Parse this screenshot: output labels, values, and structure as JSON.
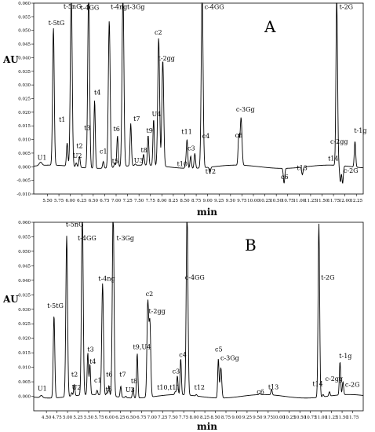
{
  "chart_data": [
    {
      "type": "line",
      "panel_label": "A",
      "xlabel": "min",
      "ylabel": "AU",
      "xlim": [
        5.2,
        12.4
      ],
      "ylim": [
        -0.01,
        0.06
      ],
      "x_ticks": [
        "5.50",
        "5.75",
        "6.00",
        "6.25",
        "6.50",
        "6.75",
        "7.00",
        "7.25",
        "7.50",
        "7.75",
        "8.00",
        "8.25",
        "8.50",
        "8.75",
        "9.00",
        "9.25",
        "9.50",
        "9.75",
        "10.00",
        "10.25",
        "10.50",
        "10.75",
        "11.00",
        "11.25",
        "11.50",
        "11.75",
        "12.00",
        "12.25"
      ],
      "y_ticks": [
        "-0.010",
        "-0.005",
        "0.000",
        "0.005",
        "0.010",
        "0.015",
        "0.020",
        "0.025",
        "0.030",
        "0.035",
        "0.040",
        "0.045",
        "0.050",
        "0.055",
        "0.060"
      ],
      "baseline": 0.0,
      "peaks": [
        {
          "label": "U1",
          "x": 5.35,
          "y": 0.0012,
          "w": 0.03
        },
        {
          "label": "t-5tG",
          "x": 5.63,
          "y": 0.0505,
          "w": 0.018
        },
        {
          "label": "t1",
          "x": 5.93,
          "y": 0.0085,
          "w": 0.015
        },
        {
          "label": "t-5nG",
          "x": 6.02,
          "y": 0.065,
          "w": 0.02
        },
        {
          "label": "U2",
          "x": 6.13,
          "y": 0.0015,
          "w": 0.015
        },
        {
          "label": "t2",
          "x": 6.2,
          "y": 0.004,
          "w": 0.015
        },
        {
          "label": "t-4GG",
          "x": 6.4,
          "y": 0.065,
          "w": 0.02
        },
        {
          "label": "t4",
          "x": 6.53,
          "y": 0.025,
          "w": 0.015
        },
        {
          "label": "c1",
          "x": 6.72,
          "y": 0.0025,
          "w": 0.015
        },
        {
          "label": "t-4ng",
          "x": 6.85,
          "y": 0.054,
          "w": 0.02
        },
        {
          "label": "t5",
          "x": 6.97,
          "y": 0.0015,
          "w": 0.015
        },
        {
          "label": "t6",
          "x": 7.03,
          "y": 0.0115,
          "w": 0.015
        },
        {
          "label": "t-3Gg",
          "x": 7.15,
          "y": 0.065,
          "w": 0.02
        },
        {
          "label": "t7",
          "x": 7.32,
          "y": 0.0155,
          "w": 0.015
        },
        {
          "label": "U3",
          "x": 7.42,
          "y": 0.0005,
          "w": 0.015
        },
        {
          "label": "t8",
          "x": 7.6,
          "y": 0.004,
          "w": 0.015
        },
        {
          "label": "t9",
          "x": 7.7,
          "y": 0.011,
          "w": 0.015
        },
        {
          "label": "U4",
          "x": 7.82,
          "y": 0.017,
          "w": 0.015
        },
        {
          "label": "c2",
          "x": 7.93,
          "y": 0.047,
          "w": 0.02
        },
        {
          "label": "t-2gg",
          "x": 8.02,
          "y": 0.039,
          "w": 0.02
        },
        {
          "label": "t10",
          "x": 8.52,
          "y": 0.0015,
          "w": 0.015
        },
        {
          "label": "t11",
          "x": 8.55,
          "y": 0.0105,
          "w": 0.015
        },
        {
          "label": "c3",
          "x": 8.63,
          "y": 0.0045,
          "w": 0.015
        },
        {
          "label": "c4",
          "x": 8.72,
          "y": 0.0055,
          "w": 0.015
        },
        {
          "label": "c-4GG",
          "x": 8.88,
          "y": 0.065,
          "w": 0.02
        },
        {
          "label": "t12",
          "x": 9.05,
          "y": -0.002,
          "w": 0.015
        },
        {
          "label": "c5",
          "x": 9.68,
          "y": 0.0105,
          "w": 0.015
        },
        {
          "label": "c-3Gg",
          "x": 9.73,
          "y": 0.0175,
          "w": 0.02
        },
        {
          "label": "c6",
          "x": 10.67,
          "y": -0.0055,
          "w": 0.015
        },
        {
          "label": "t13",
          "x": 11.07,
          "y": -0.0028,
          "w": 0.015
        },
        {
          "label": "t14",
          "x": 11.8,
          "y": -0.0065,
          "w": 0.015
        },
        {
          "label": "t-2G",
          "x": 11.82,
          "y": 0.065,
          "w": 0.018
        },
        {
          "label": "c-2gg",
          "x": 11.9,
          "y": -0.006,
          "w": 0.015
        },
        {
          "label": "c-2G",
          "x": 11.95,
          "y": -0.0065,
          "w": 0.015
        },
        {
          "label": "t-1g",
          "x": 12.22,
          "y": 0.0095,
          "w": 0.015
        }
      ],
      "annotations": [
        {
          "text": "t-5tG",
          "x": 5.52,
          "y": 0.052
        },
        {
          "text": "t1",
          "x": 5.75,
          "y": 0.0165
        },
        {
          "text": "U1",
          "x": 5.28,
          "y": 0.0025
        },
        {
          "text": "t-5nG",
          "x": 5.85,
          "y": 0.058
        },
        {
          "text": "t2",
          "x": 6.13,
          "y": 0.0068
        },
        {
          "text": "U2",
          "x": 6.05,
          "y": 0.0033
        },
        {
          "text": "t-4GG",
          "x": 6.22,
          "y": 0.0575
        },
        {
          "text": "t4",
          "x": 6.52,
          "y": 0.0265
        },
        {
          "text": "t3",
          "x": 6.3,
          "y": 0.0135
        },
        {
          "text": "c1",
          "x": 6.64,
          "y": 0.0048
        },
        {
          "text": "t-4ng",
          "x": 6.88,
          "y": 0.0578
        },
        {
          "text": "t6",
          "x": 6.94,
          "y": 0.013
        },
        {
          "text": "t5",
          "x": 6.91,
          "y": 0.0012
        },
        {
          "text": "t-3Gg",
          "x": 7.24,
          "y": 0.0578
        },
        {
          "text": "t7",
          "x": 7.38,
          "y": 0.0168
        },
        {
          "text": "U3",
          "x": 7.39,
          "y": 0.0015
        },
        {
          "text": "t8",
          "x": 7.54,
          "y": 0.0052
        },
        {
          "text": "t9",
          "x": 7.66,
          "y": 0.0125
        },
        {
          "text": "U4",
          "x": 7.78,
          "y": 0.0185
        },
        {
          "text": "c2",
          "x": 7.84,
          "y": 0.0485
        },
        {
          "text": "t-2gg",
          "x": 7.92,
          "y": 0.039
        },
        {
          "text": "t11",
          "x": 8.43,
          "y": 0.012
        },
        {
          "text": "c3",
          "x": 8.56,
          "y": 0.006
        },
        {
          "text": "t10",
          "x": 8.33,
          "y": 0.0002
        },
        {
          "text": "c4",
          "x": 8.88,
          "y": 0.0104
        },
        {
          "text": "t12",
          "x": 8.95,
          "y": -0.0025
        },
        {
          "text": "c-4GG",
          "x": 8.93,
          "y": 0.0578
        },
        {
          "text": "c5",
          "x": 9.6,
          "y": 0.0108
        },
        {
          "text": "c-3Gg",
          "x": 9.62,
          "y": 0.0202
        },
        {
          "text": "c6",
          "x": 10.6,
          "y": -0.0045
        },
        {
          "text": "t13",
          "x": 10.95,
          "y": -0.0012
        },
        {
          "text": "c-2gg",
          "x": 11.68,
          "y": 0.0085
        },
        {
          "text": "t14",
          "x": 11.63,
          "y": 0.0023
        },
        {
          "text": "t-2G",
          "x": 11.88,
          "y": 0.0578
        },
        {
          "text": "c-2G",
          "x": 11.97,
          "y": -0.0022
        },
        {
          "text": "t-1g",
          "x": 12.2,
          "y": 0.0125
        }
      ]
    },
    {
      "type": "line",
      "panel_label": "B",
      "xlabel": "min",
      "ylabel": "AU",
      "xlim": [
        4.2,
        12.0
      ],
      "ylim": [
        -0.005,
        0.06
      ],
      "x_ticks": [
        "4.50",
        "4.75",
        "5.00",
        "5.25",
        "5.50",
        "5.75",
        "6.00",
        "6.25",
        "6.50",
        "6.75",
        "7.00",
        "7.25",
        "7.50",
        "7.75",
        "8.00",
        "8.25",
        "8.50",
        "8.75",
        "9.00",
        "9.25",
        "9.50",
        "9.75",
        "10.00",
        "10.25",
        "10.50",
        "10.75",
        "11.00",
        "11.25",
        "11.50",
        "11.75"
      ],
      "y_ticks": [
        "0.000",
        "0.005",
        "0.010",
        "0.015",
        "0.020",
        "0.025",
        "0.030",
        "0.035",
        "0.040",
        "0.045",
        "0.050",
        "0.055",
        "0.060"
      ],
      "baseline": 0.0,
      "peaks": [
        {
          "label": "U1",
          "x": 4.38,
          "y": 0.0008,
          "w": 0.03
        },
        {
          "label": "t-5tG",
          "x": 4.68,
          "y": 0.0285,
          "w": 0.018
        },
        {
          "label": "t-5nG",
          "x": 4.98,
          "y": 0.0555,
          "w": 0.02
        },
        {
          "label": "U2",
          "x": 5.1,
          "y": 0.0012,
          "w": 0.015
        },
        {
          "label": "t2",
          "x": 5.16,
          "y": 0.004,
          "w": 0.015
        },
        {
          "label": "t-4GG",
          "x": 5.35,
          "y": 0.065,
          "w": 0.02
        },
        {
          "label": "t3",
          "x": 5.48,
          "y": 0.0145,
          "w": 0.015
        },
        {
          "label": "t4",
          "x": 5.53,
          "y": 0.0105,
          "w": 0.015
        },
        {
          "label": "c1",
          "x": 5.7,
          "y": 0.0015,
          "w": 0.015
        },
        {
          "label": "t-4ng",
          "x": 5.83,
          "y": 0.0385,
          "w": 0.02
        },
        {
          "label": "t5",
          "x": 5.93,
          "y": 0.001,
          "w": 0.015
        },
        {
          "label": "t6",
          "x": 5.98,
          "y": 0.0035,
          "w": 0.015
        },
        {
          "label": "t-3Gg",
          "x": 6.08,
          "y": 0.065,
          "w": 0.02
        },
        {
          "label": "t7",
          "x": 6.26,
          "y": 0.0038,
          "w": 0.015
        },
        {
          "label": "U3",
          "x": 6.38,
          "y": 0.0005,
          "w": 0.015
        },
        {
          "label": "t8",
          "x": 6.55,
          "y": 0.0035,
          "w": 0.015
        },
        {
          "label": "t9,U4",
          "x": 6.65,
          "y": 0.0155,
          "w": 0.015
        },
        {
          "label": "c2",
          "x": 6.9,
          "y": 0.0325,
          "w": 0.02
        },
        {
          "label": "t-2gg",
          "x": 6.95,
          "y": 0.0255,
          "w": 0.02
        },
        {
          "label": "t10,t11",
          "x": 7.55,
          "y": 0.001,
          "w": 0.015
        },
        {
          "label": "c3",
          "x": 7.6,
          "y": 0.0065,
          "w": 0.015
        },
        {
          "label": "c4",
          "x": 7.68,
          "y": 0.0125,
          "w": 0.015
        },
        {
          "label": "c-4GG",
          "x": 7.83,
          "y": 0.065,
          "w": 0.02
        },
        {
          "label": "t12",
          "x": 8.05,
          "y": 0.0005,
          "w": 0.015
        },
        {
          "label": "c5",
          "x": 8.57,
          "y": 0.0135,
          "w": 0.015
        },
        {
          "label": "c-3Gg",
          "x": 8.63,
          "y": 0.0105,
          "w": 0.02
        },
        {
          "label": "c6",
          "x": 9.55,
          "y": 0.0005,
          "w": 0.015
        },
        {
          "label": "t13",
          "x": 9.83,
          "y": 0.002,
          "w": 0.015
        },
        {
          "label": "t-2G",
          "x": 10.95,
          "y": 0.06,
          "w": 0.018
        },
        {
          "label": "t14",
          "x": 11.05,
          "y": 0.0008,
          "w": 0.015
        },
        {
          "label": "c-2gg",
          "x": 11.2,
          "y": 0.0015,
          "w": 0.015
        },
        {
          "label": "c-2G",
          "x": 11.52,
          "y": 0.0045,
          "w": 0.015
        },
        {
          "label": "t-1g",
          "x": 11.45,
          "y": 0.0115,
          "w": 0.015
        }
      ],
      "annotations": [
        {
          "text": "U1",
          "x": 4.29,
          "y": 0.0019
        },
        {
          "text": "t-5tG",
          "x": 4.52,
          "y": 0.0305
        },
        {
          "text": "t-5nG",
          "x": 4.96,
          "y": 0.0585
        },
        {
          "text": "t2",
          "x": 5.09,
          "y": 0.0068
        },
        {
          "text": "U2",
          "x": 5.1,
          "y": 0.0023
        },
        {
          "text": "t-4GG",
          "x": 5.24,
          "y": 0.0538
        },
        {
          "text": "t3",
          "x": 5.47,
          "y": 0.0155
        },
        {
          "text": "t4",
          "x": 5.52,
          "y": 0.0112
        },
        {
          "text": "c1",
          "x": 5.63,
          "y": 0.0048
        },
        {
          "text": "t-4ng",
          "x": 5.73,
          "y": 0.0398
        },
        {
          "text": "t6",
          "x": 5.91,
          "y": 0.0068
        },
        {
          "text": "t5",
          "x": 5.9,
          "y": 0.0017
        },
        {
          "text": "t-3Gg",
          "x": 6.16,
          "y": 0.0538
        },
        {
          "text": "t7",
          "x": 6.23,
          "y": 0.0068
        },
        {
          "text": "U3",
          "x": 6.37,
          "y": 0.0015
        },
        {
          "text": "t8",
          "x": 6.5,
          "y": 0.0045
        },
        {
          "text": "t9,U4",
          "x": 6.55,
          "y": 0.0162
        },
        {
          "text": "c2",
          "x": 6.85,
          "y": 0.0345
        },
        {
          "text": "t-2gg",
          "x": 6.92,
          "y": 0.0286
        },
        {
          "text": "t10,t11",
          "x": 7.12,
          "y": 0.0023
        },
        {
          "text": "c3",
          "x": 7.48,
          "y": 0.0079
        },
        {
          "text": "c4",
          "x": 7.64,
          "y": 0.0136
        },
        {
          "text": "t12",
          "x": 8.0,
          "y": 0.0023
        },
        {
          "text": "c-4GG",
          "x": 7.78,
          "y": 0.0402
        },
        {
          "text": "c5",
          "x": 8.49,
          "y": 0.0155
        },
        {
          "text": "c-3Gg",
          "x": 8.62,
          "y": 0.0125
        },
        {
          "text": "c6",
          "x": 9.48,
          "y": 0.0008
        },
        {
          "text": "t13",
          "x": 9.75,
          "y": 0.0025
        },
        {
          "text": "t-2G",
          "x": 11.0,
          "y": 0.0402
        },
        {
          "text": "t14",
          "x": 10.8,
          "y": 0.0035
        },
        {
          "text": "c-2gg",
          "x": 11.1,
          "y": 0.0053
        },
        {
          "text": "c-2G",
          "x": 11.57,
          "y": 0.0033
        },
        {
          "text": "t-1g",
          "x": 11.43,
          "y": 0.0132
        }
      ]
    }
  ]
}
